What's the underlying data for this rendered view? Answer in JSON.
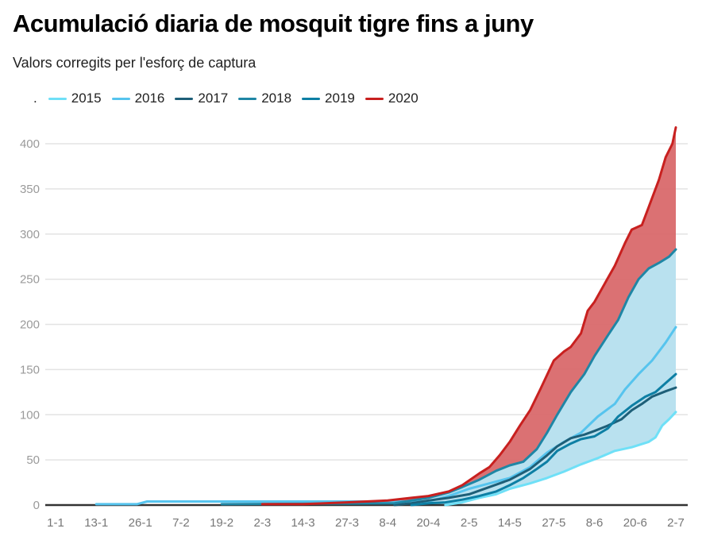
{
  "chart_data": {
    "type": "area",
    "title": "Acumulació diaria de mosquit tigre fins a juny",
    "subtitle": "Valors corregits per l'esforç de captura",
    "legend_prefix": ".",
    "legend_position": "top-left",
    "xlabel": "",
    "ylabel": "",
    "ylim": [
      0,
      400
    ],
    "xlim_days": [
      0,
      183
    ],
    "grid": true,
    "y_ticks": [
      0,
      50,
      100,
      150,
      200,
      250,
      300,
      350,
      400
    ],
    "x_ticks": [
      {
        "label": "1-1",
        "day": 0
      },
      {
        "label": "13-1",
        "day": 12
      },
      {
        "label": "26-1",
        "day": 25
      },
      {
        "label": "7-2",
        "day": 37
      },
      {
        "label": "19-2",
        "day": 49
      },
      {
        "label": "2-3",
        "day": 61
      },
      {
        "label": "14-3",
        "day": 73
      },
      {
        "label": "27-3",
        "day": 86
      },
      {
        "label": "8-4",
        "day": 98
      },
      {
        "label": "20-4",
        "day": 110
      },
      {
        "label": "2-5",
        "day": 122
      },
      {
        "label": "14-5",
        "day": 134
      },
      {
        "label": "27-5",
        "day": 147
      },
      {
        "label": "8-6",
        "day": 159
      },
      {
        "label": "20-6",
        "day": 171
      },
      {
        "label": "2-7",
        "day": 183
      }
    ],
    "bands": [
      {
        "name": "2020-band",
        "upper": "2020",
        "lower": "2018",
        "color": "#d9696b"
      },
      {
        "name": "historic-band",
        "upper": "2018",
        "lower": "2015",
        "color": "#b9e1ef"
      }
    ],
    "series": [
      {
        "name": "2015",
        "color": "#6fe0f7",
        "points": [
          [
            115,
            0
          ],
          [
            120,
            3
          ],
          [
            125,
            8
          ],
          [
            130,
            12
          ],
          [
            134,
            18
          ],
          [
            140,
            24
          ],
          [
            145,
            30
          ],
          [
            150,
            37
          ],
          [
            155,
            45
          ],
          [
            160,
            52
          ],
          [
            165,
            60
          ],
          [
            170,
            64
          ],
          [
            175,
            70
          ],
          [
            177,
            75
          ],
          [
            179,
            88
          ],
          [
            181,
            95
          ],
          [
            183,
            103
          ]
        ]
      },
      {
        "name": "2016",
        "color": "#56c4ee",
        "points": [
          [
            12,
            1
          ],
          [
            24,
            1
          ],
          [
            27,
            4
          ],
          [
            110,
            4
          ],
          [
            116,
            10
          ],
          [
            122,
            18
          ],
          [
            128,
            24
          ],
          [
            134,
            30
          ],
          [
            140,
            42
          ],
          [
            145,
            58
          ],
          [
            150,
            70
          ],
          [
            155,
            80
          ],
          [
            160,
            98
          ],
          [
            165,
            112
          ],
          [
            168,
            128
          ],
          [
            172,
            145
          ],
          [
            176,
            160
          ],
          [
            180,
            180
          ],
          [
            183,
            197
          ]
        ]
      },
      {
        "name": "2017",
        "color": "#1e5f78",
        "points": [
          [
            100,
            0
          ],
          [
            105,
            2
          ],
          [
            110,
            5
          ],
          [
            116,
            8
          ],
          [
            122,
            12
          ],
          [
            128,
            20
          ],
          [
            134,
            28
          ],
          [
            140,
            40
          ],
          [
            145,
            55
          ],
          [
            148,
            65
          ],
          [
            152,
            74
          ],
          [
            156,
            78
          ],
          [
            159,
            82
          ],
          [
            163,
            88
          ],
          [
            167,
            95
          ],
          [
            170,
            105
          ],
          [
            173,
            112
          ],
          [
            176,
            120
          ],
          [
            180,
            126
          ],
          [
            183,
            130
          ]
        ]
      },
      {
        "name": "2018",
        "color": "#1f86a5",
        "points": [
          [
            49,
            1
          ],
          [
            100,
            2
          ],
          [
            110,
            8
          ],
          [
            116,
            14
          ],
          [
            120,
            20
          ],
          [
            125,
            28
          ],
          [
            130,
            38
          ],
          [
            134,
            44
          ],
          [
            138,
            48
          ],
          [
            142,
            62
          ],
          [
            145,
            80
          ],
          [
            148,
            100
          ],
          [
            152,
            125
          ],
          [
            156,
            145
          ],
          [
            159,
            165
          ],
          [
            163,
            188
          ],
          [
            166,
            205
          ],
          [
            169,
            230
          ],
          [
            172,
            250
          ],
          [
            175,
            262
          ],
          [
            178,
            268
          ],
          [
            181,
            275
          ],
          [
            183,
            283
          ]
        ]
      },
      {
        "name": "2019",
        "color": "#0d7fa4",
        "points": [
          [
            105,
            0
          ],
          [
            110,
            2
          ],
          [
            115,
            3
          ],
          [
            120,
            6
          ],
          [
            125,
            10
          ],
          [
            130,
            15
          ],
          [
            134,
            22
          ],
          [
            138,
            30
          ],
          [
            142,
            40
          ],
          [
            145,
            48
          ],
          [
            148,
            60
          ],
          [
            152,
            68
          ],
          [
            155,
            73
          ],
          [
            159,
            76
          ],
          [
            163,
            85
          ],
          [
            166,
            98
          ],
          [
            170,
            110
          ],
          [
            174,
            120
          ],
          [
            177,
            125
          ],
          [
            180,
            135
          ],
          [
            183,
            145
          ]
        ]
      },
      {
        "name": "2020",
        "color": "#c8201f",
        "points": [
          [
            61,
            1
          ],
          [
            73,
            1
          ],
          [
            86,
            3
          ],
          [
            98,
            5
          ],
          [
            105,
            8
          ],
          [
            110,
            10
          ],
          [
            116,
            15
          ],
          [
            120,
            22
          ],
          [
            125,
            35
          ],
          [
            128,
            42
          ],
          [
            131,
            55
          ],
          [
            134,
            70
          ],
          [
            137,
            88
          ],
          [
            140,
            105
          ],
          [
            143,
            128
          ],
          [
            147,
            160
          ],
          [
            150,
            170
          ],
          [
            152,
            175
          ],
          [
            155,
            190
          ],
          [
            157,
            215
          ],
          [
            159,
            225
          ],
          [
            162,
            245
          ],
          [
            165,
            265
          ],
          [
            168,
            290
          ],
          [
            170,
            305
          ],
          [
            173,
            310
          ],
          [
            175,
            330
          ],
          [
            178,
            360
          ],
          [
            180,
            385
          ],
          [
            182,
            400
          ],
          [
            183,
            418
          ]
        ]
      }
    ]
  }
}
